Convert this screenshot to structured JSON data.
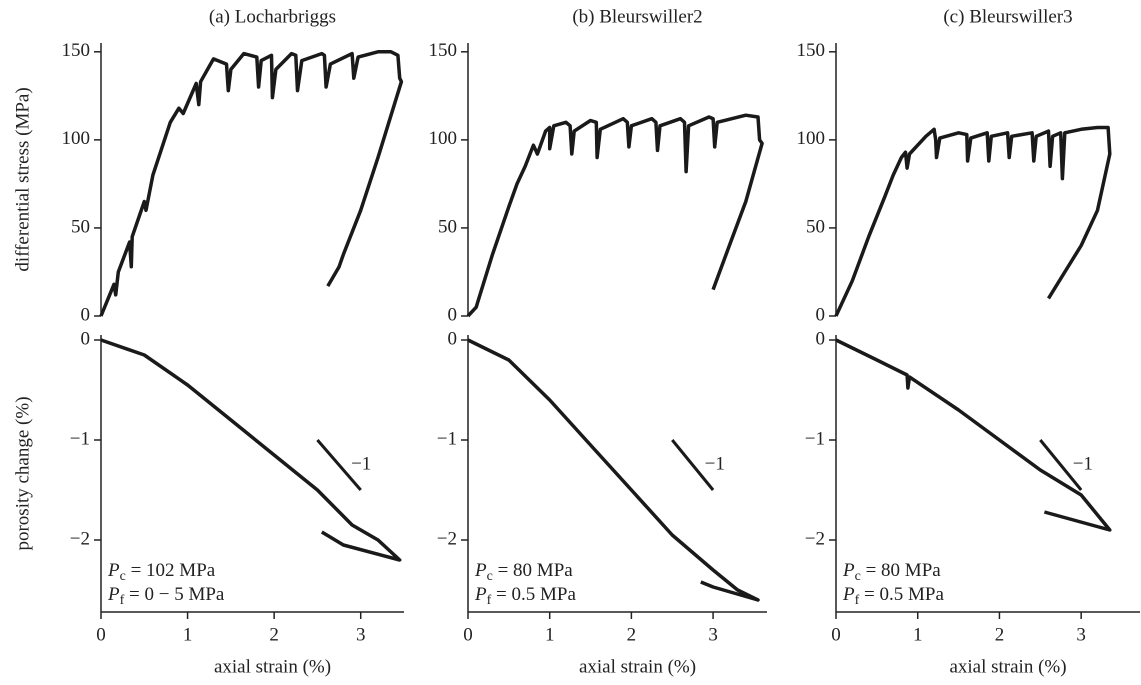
{
  "chart_data": [
    {
      "type": "line",
      "title": "(a) Locharbriggs",
      "ylabel": "differential stress (MPa)",
      "color": "#1a1a1a",
      "x": [
        0,
        0.15,
        0.17,
        0.2,
        0.33,
        0.35,
        0.36,
        0.5,
        0.52,
        0.6,
        0.8,
        0.9,
        0.95,
        1.1,
        1.13,
        1.15,
        1.3,
        1.45,
        1.47,
        1.5,
        1.65,
        1.8,
        1.82,
        1.85,
        1.97,
        1.98,
        2.02,
        2.2,
        2.25,
        2.27,
        2.32,
        2.55,
        2.58,
        2.6,
        2.65,
        2.9,
        2.92,
        2.97,
        3.2,
        3.35,
        3.43,
        3.45,
        3.47,
        3.2,
        3.0,
        2.8,
        2.75,
        2.62
      ],
      "values": [
        0,
        18,
        12,
        25,
        42,
        28,
        45,
        65,
        60,
        80,
        110,
        118,
        115,
        132,
        120,
        133,
        146,
        143,
        128,
        140,
        149,
        147,
        130,
        145,
        148,
        124,
        140,
        149,
        148,
        128,
        145,
        149,
        148,
        130,
        143,
        149,
        135,
        147,
        150,
        150,
        148,
        135,
        133,
        90,
        60,
        35,
        28,
        17
      ],
      "xlim": [
        0,
        3.5
      ],
      "ylim": [
        0,
        155
      ],
      "yticks": [
        0,
        50,
        100,
        150
      ]
    },
    {
      "type": "line",
      "title": "(b) Bleurswiller2",
      "color": "#1a1a1a",
      "x": [
        0,
        0.1,
        0.12,
        0.3,
        0.5,
        0.6,
        0.7,
        0.8,
        0.85,
        0.95,
        1.0,
        1.0,
        1.05,
        1.2,
        1.25,
        1.27,
        1.3,
        1.5,
        1.57,
        1.58,
        1.62,
        1.9,
        1.95,
        1.97,
        2.0,
        2.25,
        2.3,
        2.32,
        2.35,
        2.6,
        2.65,
        2.67,
        2.7,
        2.95,
        3.0,
        3.02,
        3.05,
        3.4,
        3.55,
        3.57,
        3.6,
        3.4,
        3.2,
        3.0
      ],
      "values": [
        0,
        5,
        8,
        35,
        62,
        75,
        85,
        97,
        92,
        105,
        107,
        95,
        108,
        110,
        108,
        92,
        105,
        111,
        110,
        90,
        106,
        112,
        110,
        96,
        108,
        112,
        110,
        94,
        108,
        112,
        110,
        82,
        108,
        113,
        112,
        96,
        110,
        114,
        113,
        100,
        98,
        65,
        40,
        15
      ],
      "xlim": [
        0,
        3.66
      ],
      "ylim": [
        0,
        155
      ],
      "yticks": [
        0,
        50,
        100,
        150
      ]
    },
    {
      "type": "line",
      "title": "(c) Bleurswiller3",
      "color": "#1a1a1a",
      "x": [
        0,
        0.2,
        0.4,
        0.6,
        0.7,
        0.8,
        0.85,
        0.87,
        0.9,
        1.1,
        1.2,
        1.22,
        1.23,
        1.27,
        1.5,
        1.6,
        1.61,
        1.65,
        1.85,
        1.87,
        1.9,
        2.1,
        2.12,
        2.15,
        2.4,
        2.42,
        2.45,
        2.6,
        2.62,
        2.65,
        2.75,
        2.77,
        2.8,
        3.0,
        3.2,
        3.33,
        3.35,
        3.2,
        3.0,
        2.8,
        2.6
      ],
      "values": [
        0,
        20,
        45,
        68,
        80,
        90,
        93,
        84,
        92,
        102,
        106,
        100,
        90,
        101,
        104,
        103,
        88,
        101,
        104,
        88,
        102,
        104,
        90,
        102,
        104,
        88,
        102,
        105,
        85,
        102,
        104,
        78,
        104,
        106,
        107,
        107,
        92,
        60,
        40,
        25,
        10
      ],
      "xlim": [
        0,
        3.72
      ],
      "ylim": [
        0,
        155
      ],
      "yticks": [
        0,
        50,
        100,
        150
      ]
    },
    {
      "type": "line",
      "ylabel": "porosity change (%)",
      "xlabel": "axial strain (%)",
      "color": "#1a1a1a",
      "x": [
        0,
        0.5,
        1.0,
        1.5,
        2.0,
        2.5,
        2.9,
        3.2,
        3.45,
        2.8,
        2.55
      ],
      "values": [
        0,
        -0.15,
        -0.45,
        -0.8,
        -1.15,
        -1.5,
        -1.85,
        -2.0,
        -2.2,
        -2.05,
        -1.92
      ],
      "xlim": [
        0,
        3.5
      ],
      "ylim": [
        -2.72,
        0.05
      ],
      "xticks": [
        0,
        1,
        2,
        3
      ],
      "yticks": [
        0,
        {
          "value": -1,
          "label": "−1"
        },
        {
          "value": -2,
          "label": "−2"
        }
      ],
      "annotation": {
        "text": "−1",
        "x": [
          2.5,
          3.0
        ],
        "y": [
          -1,
          -1.5
        ]
      },
      "conditions": [
        {
          "symbol": "P",
          "sub": "c",
          "text": " = 102 MPa"
        },
        {
          "symbol": "P",
          "sub": "f",
          "text": " = 0 − 5 MPa"
        }
      ]
    },
    {
      "type": "line",
      "xlabel": "axial strain (%)",
      "color": "#1a1a1a",
      "x": [
        0,
        0.5,
        1.0,
        1.5,
        2.0,
        2.5,
        3.0,
        3.3,
        3.55,
        3.0,
        2.85
      ],
      "values": [
        0,
        -0.2,
        -0.6,
        -1.05,
        -1.5,
        -1.95,
        -2.3,
        -2.5,
        -2.6,
        -2.47,
        -2.42
      ],
      "xlim": [
        0,
        3.66
      ],
      "ylim": [
        -2.72,
        0.05
      ],
      "xticks": [
        0,
        1,
        2,
        3
      ],
      "yticks": [
        0,
        {
          "value": -1,
          "label": "−1"
        },
        {
          "value": -2,
          "label": "−2"
        }
      ],
      "annotation": {
        "text": "−1",
        "x": [
          2.5,
          3.0
        ],
        "y": [
          -1,
          -1.5
        ]
      },
      "conditions": [
        {
          "symbol": "P",
          "sub": "c",
          "text": " = 80 MPa"
        },
        {
          "symbol": "P",
          "sub": "f",
          "text": " = 0.5 MPa"
        }
      ]
    },
    {
      "type": "line",
      "xlabel": "axial strain (%)",
      "color": "#1a1a1a",
      "x": [
        0,
        0.5,
        0.87,
        0.88,
        0.9,
        1.5,
        2.0,
        2.5,
        3.0,
        3.35,
        2.55
      ],
      "values": [
        0,
        -0.2,
        -0.35,
        -0.48,
        -0.37,
        -0.7,
        -1.0,
        -1.3,
        -1.55,
        -1.9,
        -1.72
      ],
      "xlim": [
        0,
        3.72
      ],
      "ylim": [
        -2.72,
        0.05
      ],
      "xticks": [
        0,
        1,
        2,
        3
      ],
      "yticks": [
        0,
        {
          "value": -1,
          "label": "−1"
        },
        {
          "value": -2,
          "label": "−2"
        }
      ],
      "annotation": {
        "text": "−1",
        "x": [
          2.5,
          3.0
        ],
        "y": [
          -1,
          -1.5
        ]
      },
      "conditions": [
        {
          "symbol": "P",
          "sub": "c",
          "text": " = 80 MPa"
        },
        {
          "symbol": "P",
          "sub": "f",
          "text": " = 0.5 MPa"
        }
      ]
    }
  ]
}
